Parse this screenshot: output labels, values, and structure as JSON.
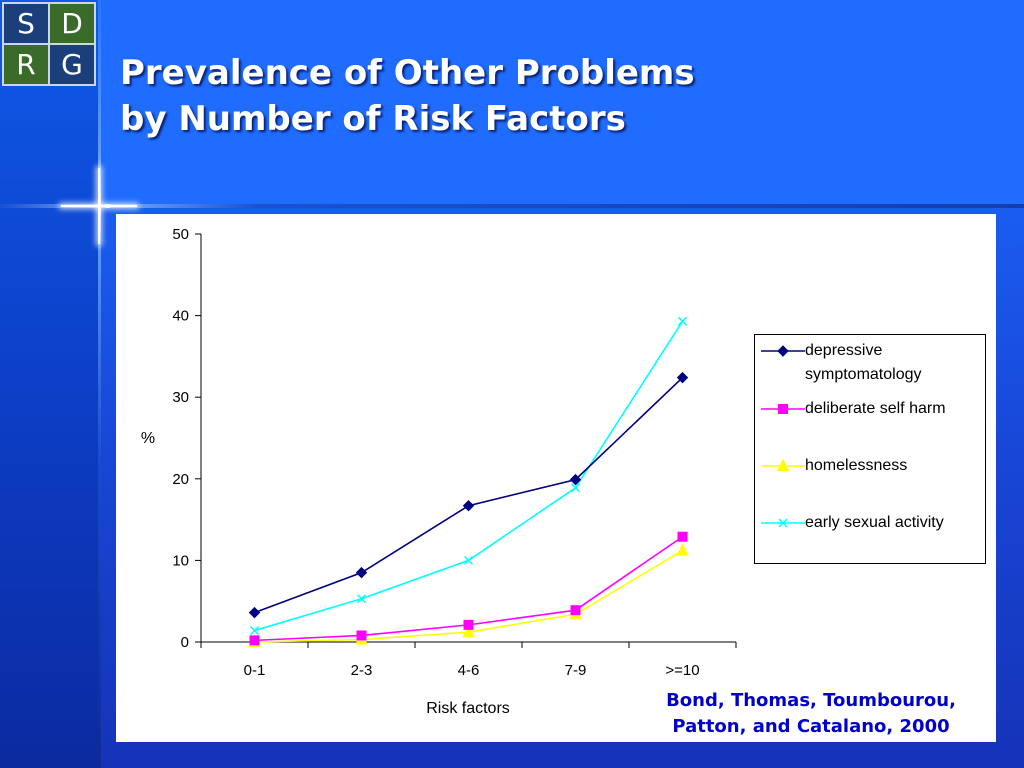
{
  "logo": {
    "letters": [
      "S",
      "D",
      "R",
      "G"
    ]
  },
  "title": {
    "line1": "Prevalence of Other Problems",
    "line2": "by Number of Risk Factors"
  },
  "citation": {
    "line1": "Bond, Thomas,  Toumbourou,",
    "line2": "Patton, and Catalano, 2000"
  },
  "colors": {
    "depressive": "#000080",
    "self_harm": "#ff00ff",
    "homelessness": "#ffff00",
    "sexual": "#00ffff",
    "title_text": "#ffffff",
    "citation_text": "#0000cc"
  },
  "chart_data": {
    "type": "line",
    "title": "",
    "xlabel": "Risk factors",
    "ylabel": "%",
    "ylim": [
      0,
      50
    ],
    "yticks": [
      0,
      10,
      20,
      30,
      40,
      50
    ],
    "categories": [
      "0-1",
      "2-3",
      "4-6",
      "7-9",
      ">=10"
    ],
    "legend_position": "right",
    "grid": false,
    "series": [
      {
        "name": "depressive symptomatology",
        "marker": "diamond",
        "color": "#000080",
        "values": [
          3.6,
          8.5,
          16.7,
          19.9,
          32.4
        ]
      },
      {
        "name": "deliberate self harm",
        "marker": "square",
        "color": "#ff00ff",
        "values": [
          0.2,
          0.8,
          2.1,
          3.9,
          12.9
        ]
      },
      {
        "name": "homelessness",
        "marker": "triangle",
        "color": "#ffff00",
        "values": [
          0.0,
          0.3,
          1.2,
          3.4,
          11.2
        ]
      },
      {
        "name": "early sexual activity",
        "marker": "x",
        "color": "#00ffff",
        "values": [
          1.4,
          5.3,
          10.0,
          18.9,
          39.3
        ]
      }
    ]
  }
}
